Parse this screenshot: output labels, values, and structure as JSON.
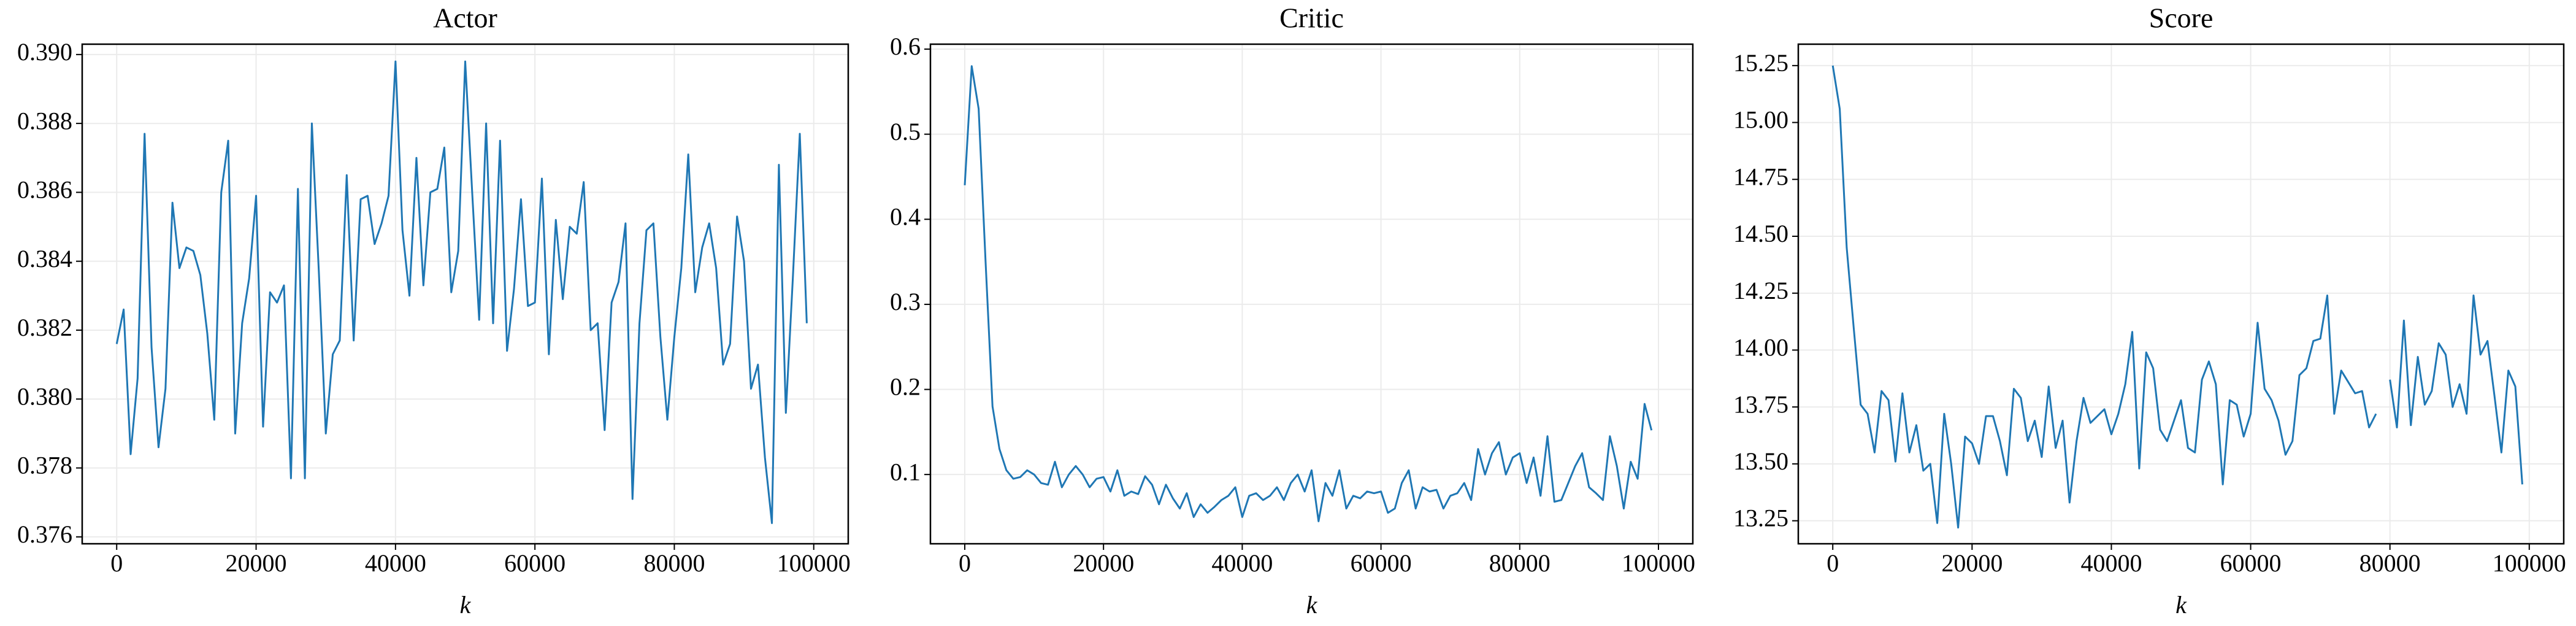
{
  "chart_data": [
    {
      "type": "line",
      "title": "Actor",
      "x_label": "k",
      "color": "#1f77b4",
      "grid": true,
      "x": [
        0,
        1000,
        2000,
        3000,
        4000,
        5000,
        6000,
        7000,
        8000,
        9000,
        10000,
        11000,
        12000,
        13000,
        14000,
        15000,
        16000,
        17000,
        18000,
        19000,
        20000,
        21000,
        22000,
        23000,
        24000,
        25000,
        26000,
        27000,
        28000,
        29000,
        30000,
        31000,
        32000,
        33000,
        34000,
        35000,
        36000,
        37000,
        38000,
        39000,
        40000,
        41000,
        42000,
        43000,
        44000,
        45000,
        46000,
        47000,
        48000,
        49000,
        50000,
        51000,
        52000,
        53000,
        54000,
        55000,
        56000,
        57000,
        58000,
        59000,
        60000,
        61000,
        62000,
        63000,
        64000,
        65000,
        66000,
        67000,
        68000,
        69000,
        70000,
        71000,
        72000,
        73000,
        74000,
        75000,
        76000,
        77000,
        78000,
        79000,
        80000,
        81000,
        82000,
        83000,
        84000,
        85000,
        86000,
        87000,
        88000,
        89000,
        90000,
        91000,
        92000,
        93000,
        94000,
        95000,
        96000,
        97000,
        98000,
        99000
      ],
      "values": [
        0.3816,
        0.3826,
        0.3784,
        0.3806,
        0.3877,
        0.3815,
        0.3786,
        0.3803,
        0.3857,
        0.3838,
        0.3844,
        0.3843,
        0.3836,
        0.3819,
        0.3794,
        0.386,
        0.3875,
        0.379,
        0.3822,
        0.3835,
        0.3859,
        0.3792,
        0.3831,
        0.3828,
        0.3833,
        0.3777,
        0.3861,
        0.3777,
        0.388,
        0.3837,
        0.379,
        0.3813,
        0.3817,
        0.3865,
        0.3817,
        0.3858,
        0.3859,
        0.3845,
        0.3851,
        0.3859,
        0.3898,
        0.3849,
        0.383,
        0.387,
        0.3833,
        0.386,
        0.3861,
        0.3873,
        0.3831,
        0.3843,
        0.3898,
        0.386,
        0.3823,
        0.388,
        0.3822,
        0.3875,
        0.3814,
        0.3832,
        0.3858,
        0.3827,
        0.3828,
        0.3864,
        0.3813,
        0.3852,
        0.3829,
        0.385,
        0.3848,
        0.3863,
        0.382,
        0.3822,
        0.3791,
        0.3828,
        0.3834,
        0.3851,
        0.3771,
        0.3822,
        0.3849,
        0.3851,
        0.3818,
        0.3794,
        0.3818,
        0.3838,
        0.3871,
        0.3831,
        0.3844,
        0.3851,
        0.3838,
        0.381,
        0.3816,
        0.3853,
        0.384,
        0.3803,
        0.381,
        0.3783,
        0.3764,
        0.3868,
        0.3796,
        0.3835,
        0.3877,
        0.3822
      ],
      "xlim": [
        -4950,
        104950
      ],
      "xticks": [
        0,
        20000,
        40000,
        60000,
        80000,
        100000
      ],
      "ylim": [
        0.3758,
        0.3903
      ],
      "yticks": [
        {
          "value": 0.376,
          "label": "0.376"
        },
        {
          "value": 0.378,
          "label": "0.378"
        },
        {
          "value": 0.38,
          "label": "0.380"
        },
        {
          "value": 0.382,
          "label": "0.382"
        },
        {
          "value": 0.384,
          "label": "0.384"
        },
        {
          "value": 0.386,
          "label": "0.386"
        },
        {
          "value": 0.388,
          "label": "0.388"
        },
        {
          "value": 0.39,
          "label": "0.390"
        }
      ]
    },
    {
      "type": "line",
      "title": "Critic",
      "x_label": "k",
      "color": "#1f77b4",
      "grid": true,
      "x": [
        0,
        1000,
        2000,
        3000,
        4000,
        5000,
        6000,
        7000,
        8000,
        9000,
        10000,
        11000,
        12000,
        13000,
        14000,
        15000,
        16000,
        17000,
        18000,
        19000,
        20000,
        21000,
        22000,
        23000,
        24000,
        25000,
        26000,
        27000,
        28000,
        29000,
        30000,
        31000,
        32000,
        33000,
        34000,
        35000,
        36000,
        37000,
        38000,
        39000,
        40000,
        41000,
        42000,
        43000,
        44000,
        45000,
        46000,
        47000,
        48000,
        49000,
        50000,
        51000,
        52000,
        53000,
        54000,
        55000,
        56000,
        57000,
        58000,
        59000,
        60000,
        61000,
        62000,
        63000,
        64000,
        65000,
        66000,
        67000,
        68000,
        69000,
        70000,
        71000,
        72000,
        73000,
        74000,
        75000,
        76000,
        77000,
        78000,
        79000,
        80000,
        81000,
        82000,
        83000,
        84000,
        85000,
        86000,
        87000,
        88000,
        89000,
        90000,
        91000,
        92000,
        93000,
        94000,
        95000,
        96000,
        97000,
        98000,
        99000
      ],
      "values": [
        0.44,
        0.58,
        0.53,
        0.35,
        0.18,
        0.13,
        0.105,
        0.095,
        0.097,
        0.105,
        0.1,
        0.09,
        0.088,
        0.115,
        0.085,
        0.1,
        0.11,
        0.1,
        0.085,
        0.095,
        0.097,
        0.08,
        0.105,
        0.075,
        0.08,
        0.077,
        0.098,
        0.088,
        0.065,
        0.088,
        0.072,
        0.06,
        0.078,
        0.05,
        0.065,
        0.055,
        0.062,
        0.07,
        0.075,
        0.085,
        0.05,
        0.075,
        0.078,
        0.07,
        0.075,
        0.085,
        0.07,
        0.09,
        0.1,
        0.08,
        0.105,
        0.045,
        0.09,
        0.075,
        0.105,
        0.06,
        0.075,
        0.072,
        0.08,
        0.078,
        0.08,
        0.055,
        0.06,
        0.09,
        0.105,
        0.06,
        0.085,
        0.08,
        0.082,
        0.06,
        0.075,
        0.078,
        0.09,
        0.07,
        0.13,
        0.1,
        0.125,
        0.138,
        0.1,
        0.12,
        0.125,
        0.09,
        0.12,
        0.075,
        0.145,
        0.068,
        0.07,
        0.09,
        0.11,
        0.125,
        0.085,
        0.078,
        0.07,
        0.145,
        0.11,
        0.06,
        0.115,
        0.095,
        0.183,
        0.152
      ],
      "xlim": [
        -4950,
        104950
      ],
      "xticks": [
        0,
        20000,
        40000,
        60000,
        80000,
        100000
      ],
      "ylim": [
        0.0186,
        0.6058
      ],
      "yticks": [
        0.1,
        0.2,
        0.3,
        0.4,
        0.5,
        0.6
      ]
    },
    {
      "type": "line",
      "title": "Score",
      "x_label": "k",
      "color": "#1f77b4",
      "grid": true,
      "x": [
        0,
        1000,
        2000,
        3000,
        4000,
        5000,
        6000,
        7000,
        8000,
        9000,
        10000,
        11000,
        12000,
        13000,
        14000,
        15000,
        16000,
        17000,
        18000,
        19000,
        20000,
        21000,
        22000,
        23000,
        24000,
        25000,
        26000,
        27000,
        28000,
        29000,
        30000,
        31000,
        32000,
        33000,
        34000,
        35000,
        36000,
        37000,
        38000,
        39000,
        40000,
        41000,
        42000,
        43000,
        44000,
        45000,
        46000,
        47000,
        48000,
        49000,
        50000,
        51000,
        52000,
        53000,
        54000,
        55000,
        56000,
        57000,
        58000,
        59000,
        60000,
        61000,
        62000,
        63000,
        64000,
        65000,
        66000,
        67000,
        68000,
        69000,
        70000,
        71000,
        72000,
        73000,
        74000,
        75000,
        76000,
        77000,
        78000,
        79000,
        80000,
        81000,
        82000,
        83000,
        84000,
        85000,
        86000,
        87000,
        88000,
        89000,
        90000,
        91000,
        92000,
        93000,
        94000,
        95000,
        96000,
        97000,
        98000,
        99000
      ],
      "values": [
        15.25,
        15.06,
        14.45,
        14.1,
        13.76,
        13.72,
        13.55,
        13.82,
        13.78,
        13.51,
        13.81,
        13.55,
        13.67,
        13.47,
        13.5,
        13.24,
        13.72,
        13.5,
        13.22,
        13.62,
        13.59,
        13.5,
        13.71,
        13.71,
        13.6,
        13.45,
        13.83,
        13.79,
        13.6,
        13.69,
        13.53,
        13.84,
        13.57,
        13.69,
        13.33,
        13.6,
        13.79,
        13.68,
        13.71,
        13.74,
        13.63,
        13.72,
        13.85,
        14.08,
        13.48,
        13.99,
        13.92,
        13.65,
        13.6,
        13.69,
        13.78,
        13.57,
        13.55,
        13.87,
        13.95,
        13.85,
        13.41,
        13.78,
        13.76,
        13.62,
        13.72,
        14.12,
        13.83,
        13.78,
        13.69,
        13.54,
        13.6,
        13.89,
        13.92,
        14.04,
        14.05,
        14.24,
        13.72,
        13.91,
        13.86,
        13.81,
        13.82,
        13.66,
        13.72,
        null,
        13.87,
        13.66,
        14.13,
        13.67,
        13.97,
        13.76,
        13.82,
        14.03,
        13.98,
        13.75,
        13.85,
        13.72,
        14.24,
        13.98,
        14.04,
        13.8,
        13.55,
        13.91,
        13.84,
        13.41
      ],
      "xlim": [
        -4950,
        104950
      ],
      "xticks": [
        0,
        20000,
        40000,
        60000,
        80000,
        100000
      ],
      "ylim": [
        13.149,
        15.344
      ],
      "yticks": [
        13.25,
        {
          "value": 13.5,
          "label": "13.50"
        },
        13.75,
        {
          "value": 14,
          "label": "14.00"
        },
        14.25,
        {
          "value": 14.5,
          "label": "14.50"
        },
        14.75,
        {
          "value": 15,
          "label": "15.00"
        },
        15.25
      ]
    }
  ]
}
